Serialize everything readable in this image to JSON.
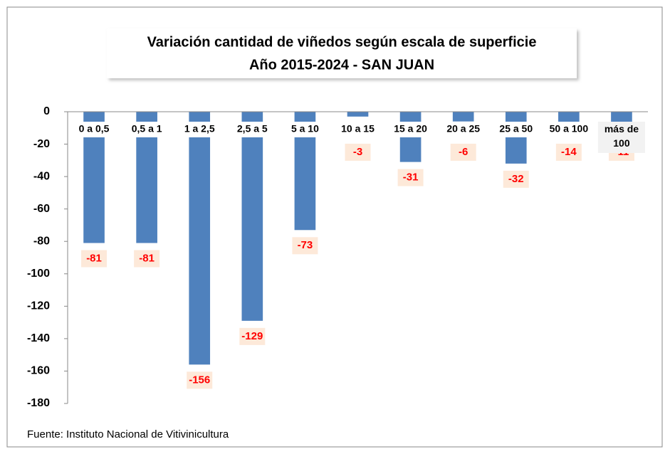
{
  "chart_data": {
    "type": "bar",
    "title": "Variación cantidad de viñedos según escala de superficie",
    "subtitle": "Año 2015-2024 - SAN JUAN",
    "categories": [
      "0 a 0,5",
      "0,5 a 1",
      "1 a 2,5",
      "2,5 a 5",
      "5 a 10",
      "10 a 15",
      "15 a 20",
      "20 a 25",
      "25 a 50",
      "50 a 100",
      "más de 100"
    ],
    "values": [
      -81,
      -81,
      -156,
      -129,
      -73,
      -3,
      -31,
      -6,
      -32,
      -14,
      -11
    ],
    "color": "#4f81bd",
    "label_color": "#ff0000",
    "ylim": [
      -180,
      0
    ],
    "yticks": [
      0,
      -20,
      -40,
      -60,
      -80,
      -100,
      -120,
      -140,
      -160,
      -180
    ],
    "grid": false,
    "source": "Fuente: Instituto Nacional de Vitivinicultura"
  }
}
